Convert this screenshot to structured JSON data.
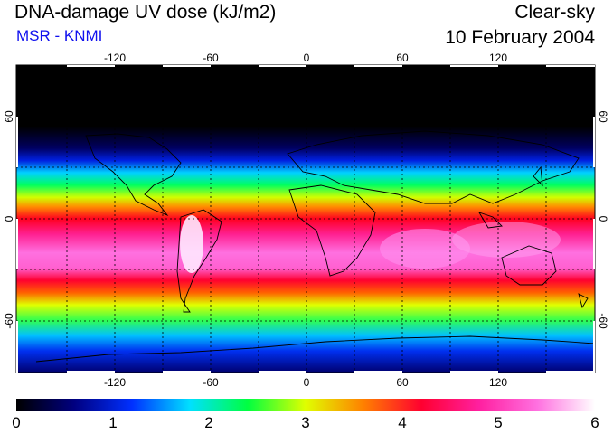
{
  "header": {
    "title": "DNA-damage UV dose (kJ/m2)",
    "source": "MSR - KNMI",
    "mode": "Clear-sky",
    "date": "10 February 2004"
  },
  "map": {
    "lon_ticks": [
      "-120",
      "-60",
      "0",
      "60",
      "120"
    ],
    "lat_ticks": [
      "60",
      "0",
      "-60"
    ],
    "lon_range": [
      -180,
      180
    ],
    "lat_range": [
      -90,
      90
    ],
    "grid_spacing_deg": 30,
    "grid_style": "dotted black"
  },
  "colorbar": {
    "min": 0,
    "max": 6,
    "labels": [
      "0",
      "1",
      "2",
      "3",
      "4",
      "5",
      "6"
    ],
    "colors": [
      "#000000",
      "#000080",
      "#0030ff",
      "#00e0ff",
      "#00ff40",
      "#e0ff00",
      "#ff8000",
      "#ff0030",
      "#ff20a0",
      "#ff70e0",
      "#ffffff"
    ]
  },
  "chart_data": {
    "type": "heatmap",
    "title": "DNA-damage UV dose (kJ/m2)",
    "description_scale": [
      0,
      6
    ],
    "latitude_profile": [
      {
        "lat": 90,
        "value": 0.0
      },
      {
        "lat": 60,
        "value": 0.1
      },
      {
        "lat": 50,
        "value": 0.6
      },
      {
        "lat": 40,
        "value": 1.4
      },
      {
        "lat": 30,
        "value": 2.5
      },
      {
        "lat": 20,
        "value": 3.5
      },
      {
        "lat": 10,
        "value": 4.3
      },
      {
        "lat": 0,
        "value": 5.0
      },
      {
        "lat": -10,
        "value": 5.6
      },
      {
        "lat": -20,
        "value": 5.7
      },
      {
        "lat": -30,
        "value": 4.6
      },
      {
        "lat": -40,
        "value": 3.4
      },
      {
        "lat": -50,
        "value": 2.4
      },
      {
        "lat": -60,
        "value": 1.6
      },
      {
        "lat": -70,
        "value": 0.9
      },
      {
        "lat": -80,
        "value": 0.4
      },
      {
        "lat": -90,
        "value": 0.1
      }
    ]
  }
}
